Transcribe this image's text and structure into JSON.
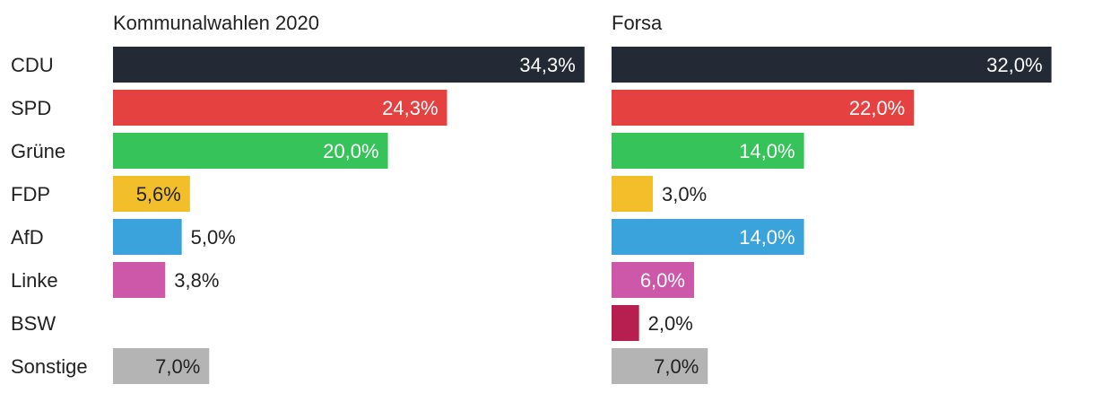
{
  "chart_data": {
    "type": "bar",
    "orientation": "horizontal",
    "categories": [
      "CDU",
      "SPD",
      "Grüne",
      "FDP",
      "AfD",
      "Linke",
      "BSW",
      "Sonstige"
    ],
    "colors": [
      "#232a35",
      "#e54141",
      "#36c35a",
      "#f2bf2a",
      "#3aa3dc",
      "#cd58a9",
      "#b61f4f",
      "#b4b4b4"
    ],
    "label_colors": [
      "#ffffff",
      "#ffffff",
      "#ffffff",
      "#222222",
      "#ffffff",
      "#ffffff",
      "#ffffff",
      "#222222"
    ],
    "grid": false,
    "panels": [
      {
        "title": "Kommunalwahlen 2020",
        "values": [
          34.3,
          24.3,
          20.0,
          5.6,
          5.0,
          3.8,
          null,
          7.0
        ],
        "labels": [
          "34,3%",
          "24,3%",
          "20,0%",
          "5,6%",
          "5,0%",
          "3,8%",
          "",
          "7,0%"
        ]
      },
      {
        "title": "Forsa",
        "values": [
          32.0,
          22.0,
          14.0,
          3.0,
          14.0,
          6.0,
          2.0,
          7.0
        ],
        "labels": [
          "32,0%",
          "22,0%",
          "14,0%",
          "3,0%",
          "14,0%",
          "6,0%",
          "2,0%",
          "7,0%"
        ]
      }
    ]
  }
}
